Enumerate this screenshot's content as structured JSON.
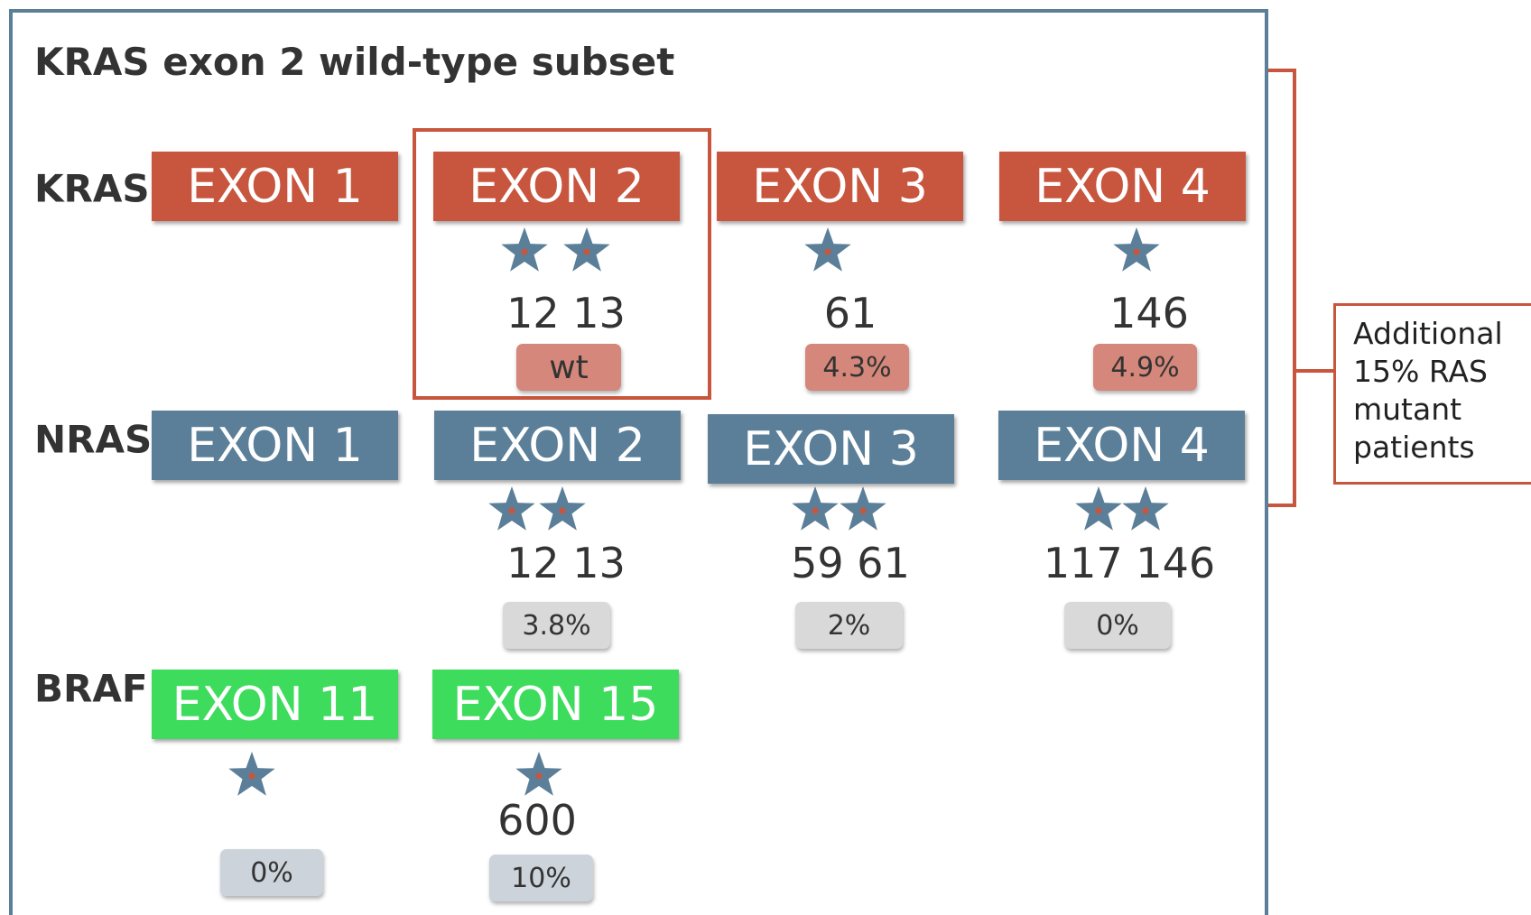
{
  "title": "KRAS exon 2 wild-type subset",
  "genes": [
    {
      "name": "KRAS",
      "exons": [
        {
          "label": "EXON 1"
        },
        {
          "label": "EXON 2",
          "positions": "12 13",
          "stat": "wt"
        },
        {
          "label": "EXON 3",
          "positions": "61",
          "stat": "4.3%"
        },
        {
          "label": "EXON 4",
          "positions": "146",
          "stat": "4.9%"
        }
      ]
    },
    {
      "name": "NRAS",
      "exons": [
        {
          "label": "EXON 1"
        },
        {
          "label": "EXON 2",
          "positions": "12 13",
          "stat": "3.8%"
        },
        {
          "label": "EXON 3",
          "positions": "59 61",
          "stat": "2%"
        },
        {
          "label": "EXON 4",
          "positions": "117 146",
          "stat": "0%"
        }
      ]
    },
    {
      "name": "BRAF",
      "exons": [
        {
          "label": "EXON 11",
          "stat": "0%"
        },
        {
          "label": "EXON 15",
          "positions": "600",
          "stat": "10%"
        }
      ]
    }
  ],
  "note": {
    "lines": [
      "Additional",
      "15% RAS",
      "mutant",
      "patients"
    ]
  }
}
